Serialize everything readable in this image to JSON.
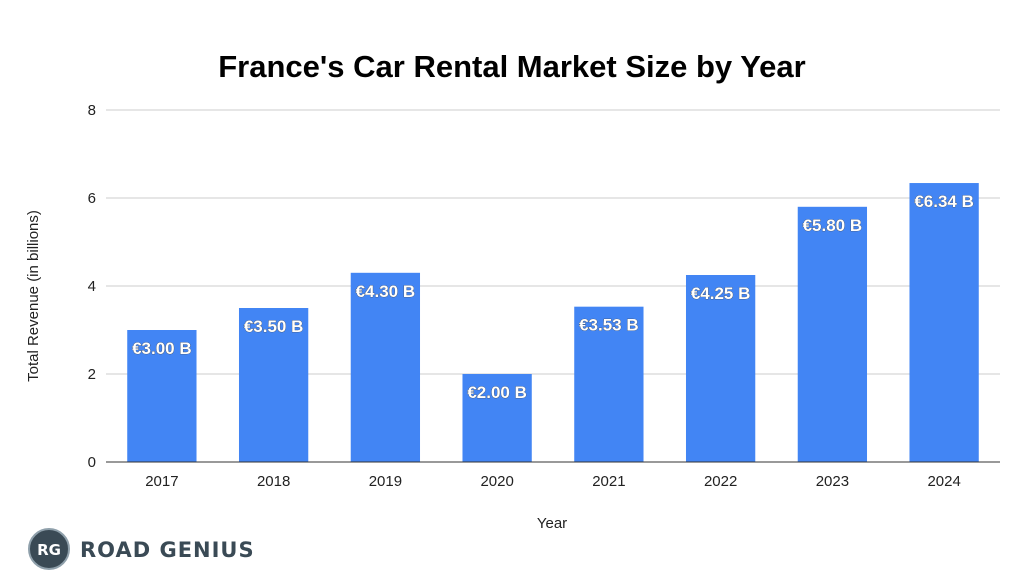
{
  "chart_data": {
    "type": "bar",
    "title": "France's Car Rental Market Size by Year",
    "xlabel": "Year",
    "ylabel": "Total Revenue (in billions)",
    "categories": [
      "2017",
      "2018",
      "2019",
      "2020",
      "2021",
      "2022",
      "2023",
      "2024"
    ],
    "values": [
      3.0,
      3.5,
      4.3,
      2.0,
      3.53,
      4.25,
      5.8,
      6.34
    ],
    "data_labels": [
      "€3.00 B",
      "€3.50 B",
      "€4.30 B",
      "€2.00 B",
      "€3.53 B",
      "€4.25 B",
      "€5.80 B",
      "€6.34 B"
    ],
    "ylim": [
      0,
      8
    ],
    "yticks": [
      0,
      2,
      4,
      6,
      8
    ],
    "grid": true,
    "bar_color": "#4285f4",
    "grid_color": "#cccccc"
  },
  "brand": {
    "mark": "RG",
    "name": "ROAD GENIUS",
    "color": "#3a4a55"
  }
}
